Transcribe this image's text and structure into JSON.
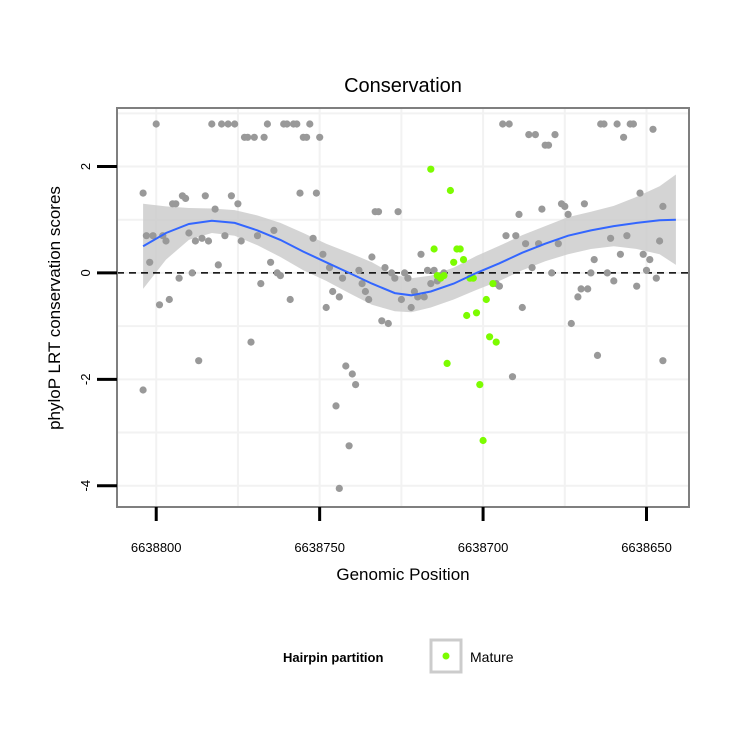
{
  "colors": {
    "background": "#ffffff",
    "panel_border": "#7f7f7f",
    "grid": "#f2f2f2",
    "points": "#999999",
    "mature": "#7cfc00",
    "smooth_line": "#3366ff",
    "ribbon": "#cccccc",
    "reference_line": "#000000"
  },
  "chart_data": {
    "type": "scatter",
    "title": "Conservation",
    "xlabel": "Genomic Position",
    "ylabel": "phyloP LRT conservation scores",
    "x_reversed": true,
    "xlim": [
      6638812,
      6638637
    ],
    "ylim": [
      -4.4,
      3.1
    ],
    "x_ticks": [
      6638800,
      6638750,
      6638700,
      6638650
    ],
    "x_tick_labels": [
      "6638800",
      "6638750",
      "6638700",
      "6638650"
    ],
    "y_ticks": [
      -4,
      -2,
      0,
      2
    ],
    "y_tick_labels": [
      "-4",
      "-2",
      "0",
      "2"
    ],
    "grid": true,
    "reference_line_y": 0,
    "legend": {
      "title": "Hairpin partition",
      "placement": "bottom",
      "items": [
        {
          "label": "Mature",
          "color": "#7cfc00"
        }
      ]
    },
    "series": [
      {
        "kind": "points",
        "color": "#999999",
        "points": [
          [
            6638804,
            1.5
          ],
          [
            6638804,
            -2.2
          ],
          [
            6638803,
            0.7
          ],
          [
            6638802,
            0.2
          ],
          [
            6638801,
            0.7
          ],
          [
            6638800,
            2.8
          ],
          [
            6638799,
            -0.6
          ],
          [
            6638798,
            0.7
          ],
          [
            6638797,
            0.6
          ],
          [
            6638796,
            -0.5
          ],
          [
            6638795,
            1.3
          ],
          [
            6638794,
            1.3
          ],
          [
            6638793,
            -0.1
          ],
          [
            6638792,
            1.45
          ],
          [
            6638791,
            1.4
          ],
          [
            6638790,
            0.75
          ],
          [
            6638789,
            0.0
          ],
          [
            6638788,
            0.6
          ],
          [
            6638787,
            -1.65
          ],
          [
            6638786,
            0.65
          ],
          [
            6638785,
            1.45
          ],
          [
            6638784,
            0.6
          ],
          [
            6638783,
            2.8
          ],
          [
            6638782,
            1.2
          ],
          [
            6638781,
            0.15
          ],
          [
            6638780,
            2.8
          ],
          [
            6638779,
            0.7
          ],
          [
            6638778,
            2.8
          ],
          [
            6638777,
            1.45
          ],
          [
            6638776,
            2.8
          ],
          [
            6638775,
            1.3
          ],
          [
            6638774,
            0.6
          ],
          [
            6638773,
            2.55
          ],
          [
            6638772,
            2.55
          ],
          [
            6638771,
            -1.3
          ],
          [
            6638770,
            2.55
          ],
          [
            6638769,
            0.7
          ],
          [
            6638768,
            -0.2
          ],
          [
            6638767,
            2.55
          ],
          [
            6638766,
            2.8
          ],
          [
            6638765,
            0.2
          ],
          [
            6638764,
            0.8
          ],
          [
            6638763,
            0.0
          ],
          [
            6638762,
            -0.05
          ],
          [
            6638761,
            2.8
          ],
          [
            6638760,
            2.8
          ],
          [
            6638759,
            -0.5
          ],
          [
            6638758,
            2.8
          ],
          [
            6638757,
            2.8
          ],
          [
            6638756,
            1.5
          ],
          [
            6638755,
            2.55
          ],
          [
            6638754,
            2.55
          ],
          [
            6638753,
            2.8
          ],
          [
            6638752,
            0.65
          ],
          [
            6638751,
            1.5
          ],
          [
            6638750,
            2.55
          ],
          [
            6638749,
            0.35
          ],
          [
            6638748,
            -0.65
          ],
          [
            6638747,
            0.1
          ],
          [
            6638746,
            -0.35
          ],
          [
            6638745,
            -2.5
          ],
          [
            6638744,
            -4.05
          ],
          [
            6638744,
            -0.45
          ],
          [
            6638743,
            -0.1
          ],
          [
            6638742,
            -1.75
          ],
          [
            6638741,
            -3.25
          ],
          [
            6638740,
            -1.9
          ],
          [
            6638739,
            -2.1
          ],
          [
            6638738,
            0.05
          ],
          [
            6638737,
            -0.2
          ],
          [
            6638736,
            -0.35
          ],
          [
            6638735,
            -0.5
          ],
          [
            6638734,
            0.3
          ],
          [
            6638733,
            1.15
          ],
          [
            6638732,
            1.15
          ],
          [
            6638731,
            -0.9
          ],
          [
            6638730,
            0.1
          ],
          [
            6638729,
            -0.95
          ],
          [
            6638728,
            0.0
          ],
          [
            6638727,
            -0.1
          ],
          [
            6638726,
            1.15
          ],
          [
            6638725,
            -0.5
          ],
          [
            6638724,
            0.0
          ],
          [
            6638723,
            -0.1
          ],
          [
            6638722,
            -0.65
          ],
          [
            6638721,
            -0.35
          ],
          [
            6638720,
            -0.45
          ],
          [
            6638719,
            0.35
          ],
          [
            6638718,
            -0.45
          ],
          [
            6638717,
            0.05
          ],
          [
            6638716,
            -0.2
          ],
          [
            6638715,
            0.05
          ],
          [
            6638714,
            -0.15
          ],
          [
            6638713,
            -0.05
          ],
          [
            6638712,
            0.0
          ],
          [
            6638696,
            -0.2
          ],
          [
            6638695,
            -0.25
          ],
          [
            6638694,
            2.8
          ],
          [
            6638693,
            0.7
          ],
          [
            6638692,
            2.8
          ],
          [
            6638691,
            -1.95
          ],
          [
            6638690,
            0.7
          ],
          [
            6638689,
            1.1
          ],
          [
            6638688,
            -0.65
          ],
          [
            6638687,
            0.55
          ],
          [
            6638686,
            2.6
          ],
          [
            6638685,
            0.1
          ],
          [
            6638684,
            2.6
          ],
          [
            6638683,
            0.55
          ],
          [
            6638682,
            1.2
          ],
          [
            6638681,
            2.4
          ],
          [
            6638680,
            2.4
          ],
          [
            6638679,
            0.0
          ],
          [
            6638678,
            2.6
          ],
          [
            6638677,
            0.55
          ],
          [
            6638676,
            1.3
          ],
          [
            6638675,
            1.25
          ],
          [
            6638674,
            1.1
          ],
          [
            6638673,
            -0.95
          ],
          [
            6638671,
            -0.45
          ],
          [
            6638670,
            -0.3
          ],
          [
            6638669,
            1.3
          ],
          [
            6638668,
            -0.3
          ],
          [
            6638667,
            0.0
          ],
          [
            6638666,
            0.25
          ],
          [
            6638665,
            -1.55
          ],
          [
            6638664,
            2.8
          ],
          [
            6638663,
            2.8
          ],
          [
            6638662,
            0.0
          ],
          [
            6638661,
            0.65
          ],
          [
            6638660,
            -0.15
          ],
          [
            6638659,
            2.8
          ],
          [
            6638658,
            0.35
          ],
          [
            6638657,
            2.55
          ],
          [
            6638656,
            0.7
          ],
          [
            6638655,
            2.8
          ],
          [
            6638654,
            2.8
          ],
          [
            6638653,
            -0.25
          ],
          [
            6638652,
            1.5
          ],
          [
            6638651,
            0.35
          ],
          [
            6638650,
            0.05
          ],
          [
            6638649,
            0.25
          ],
          [
            6638648,
            2.7
          ],
          [
            6638647,
            -0.1
          ],
          [
            6638646,
            0.6
          ],
          [
            6638645,
            1.25
          ],
          [
            6638645,
            -1.65
          ]
        ]
      },
      {
        "name": "Mature",
        "kind": "points",
        "color": "#7cfc00",
        "points": [
          [
            6638716,
            1.95
          ],
          [
            6638715,
            0.45
          ],
          [
            6638714,
            -0.05
          ],
          [
            6638713,
            -0.1
          ],
          [
            6638712,
            -0.05
          ],
          [
            6638711,
            -1.7
          ],
          [
            6638710,
            1.55
          ],
          [
            6638709,
            0.2
          ],
          [
            6638708,
            0.45
          ],
          [
            6638707,
            0.45
          ],
          [
            6638706,
            0.25
          ],
          [
            6638705,
            -0.8
          ],
          [
            6638704,
            -0.1
          ],
          [
            6638703,
            -0.1
          ],
          [
            6638702,
            -0.75
          ],
          [
            6638701,
            -2.1
          ],
          [
            6638700,
            -3.15
          ],
          [
            6638699,
            -0.5
          ],
          [
            6638698,
            -1.2
          ],
          [
            6638697,
            -0.2
          ],
          [
            6638696,
            -1.3
          ]
        ]
      },
      {
        "kind": "smooth",
        "color": "#3366ff",
        "points": [
          [
            6638804,
            0.5
          ],
          [
            6638797,
            0.75
          ],
          [
            6638790,
            0.92
          ],
          [
            6638783,
            0.98
          ],
          [
            6638776,
            0.94
          ],
          [
            6638769,
            0.8
          ],
          [
            6638762,
            0.62
          ],
          [
            6638755,
            0.4
          ],
          [
            6638748,
            0.2
          ],
          [
            6638741,
            0.0
          ],
          [
            6638734,
            -0.2
          ],
          [
            6638727,
            -0.38
          ],
          [
            6638722,
            -0.42
          ],
          [
            6638716,
            -0.35
          ],
          [
            6638709,
            -0.2
          ],
          [
            6638702,
            0.0
          ],
          [
            6638695,
            0.18
          ],
          [
            6638688,
            0.38
          ],
          [
            6638681,
            0.55
          ],
          [
            6638674,
            0.7
          ],
          [
            6638667,
            0.8
          ],
          [
            6638660,
            0.88
          ],
          [
            6638653,
            0.94
          ],
          [
            6638646,
            0.99
          ],
          [
            6638641,
            1.0
          ]
        ],
        "ribbon_lower": [
          -0.3,
          0.25,
          0.62,
          0.75,
          0.7,
          0.52,
          0.3,
          0.05,
          -0.15,
          -0.38,
          -0.6,
          -0.72,
          -0.74,
          -0.65,
          -0.5,
          -0.32,
          -0.15,
          0.05,
          0.22,
          0.35,
          0.45,
          0.5,
          0.45,
          0.35,
          0.15
        ],
        "ribbon_upper": [
          1.3,
          1.25,
          1.22,
          1.21,
          1.18,
          1.08,
          0.94,
          0.75,
          0.55,
          0.38,
          0.2,
          -0.04,
          -0.1,
          -0.05,
          0.1,
          0.32,
          0.51,
          0.71,
          0.88,
          1.05,
          1.15,
          1.26,
          1.43,
          1.63,
          1.85
        ]
      }
    ]
  }
}
